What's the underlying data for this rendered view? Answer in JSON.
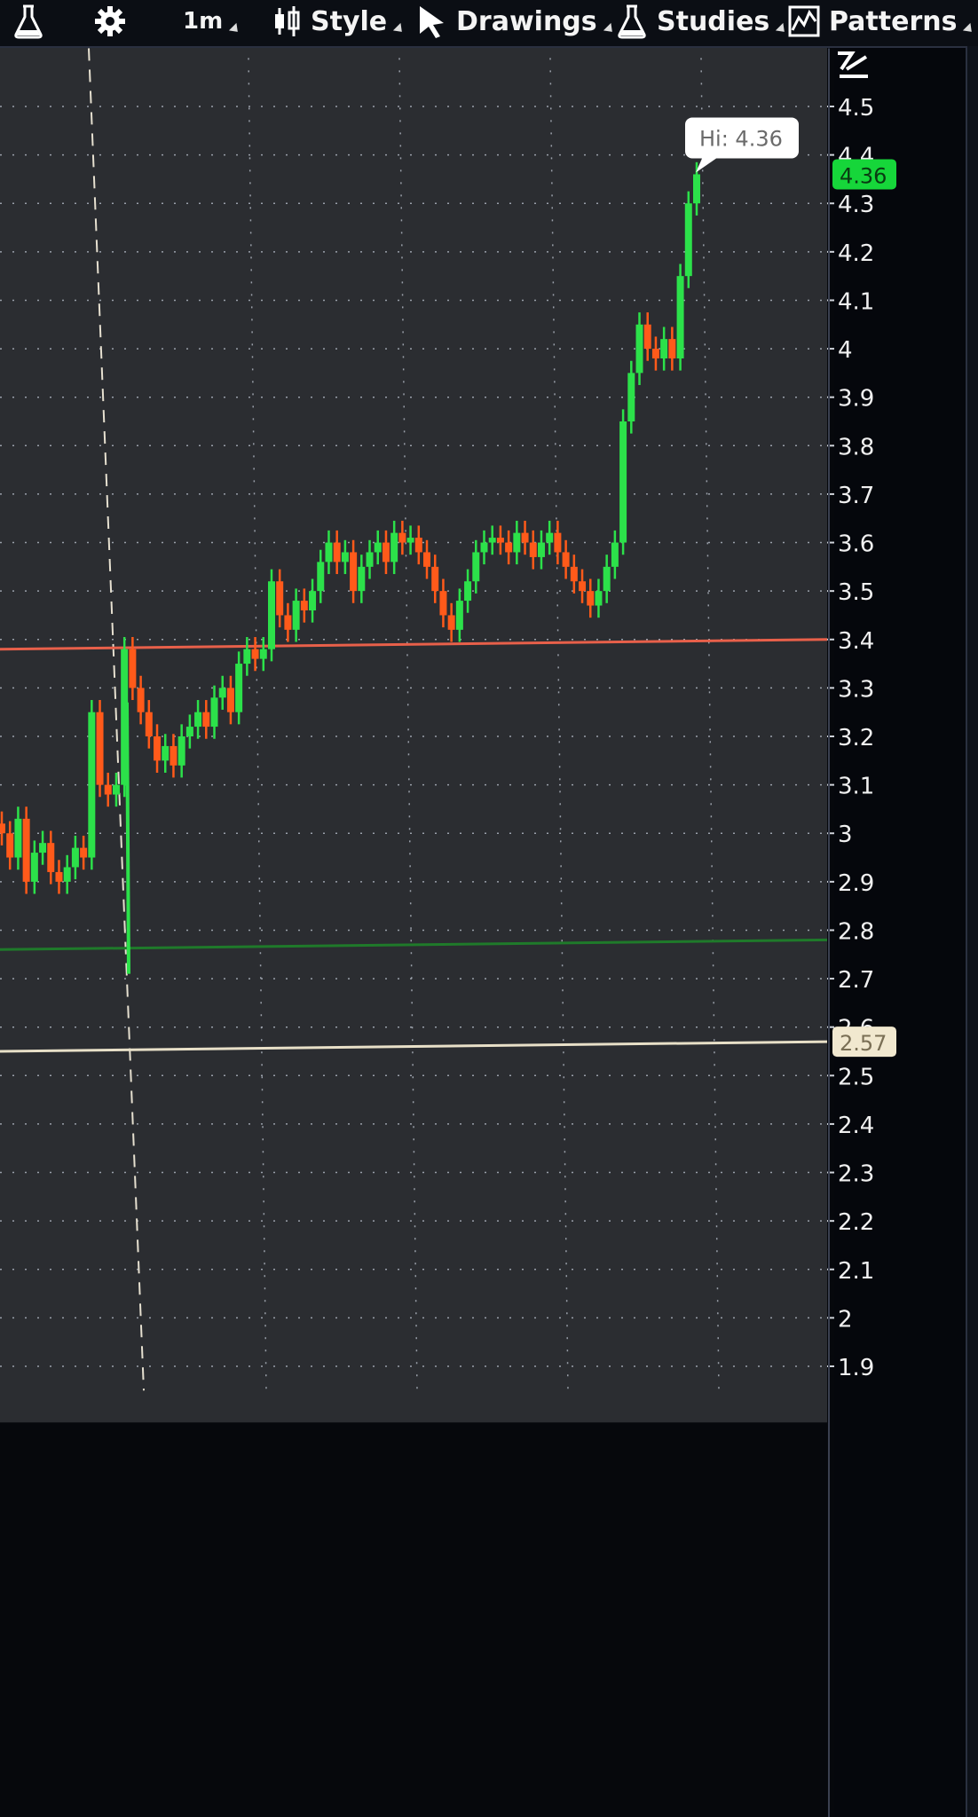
{
  "toolbar": {
    "items": [
      {
        "icon": "flask-icon",
        "label": ""
      },
      {
        "icon": "gear-icon",
        "label": ""
      },
      {
        "icon": "",
        "label": "1m"
      },
      {
        "icon": "candlestick-icon",
        "label": "Style"
      },
      {
        "icon": "cursor-arrow-icon",
        "label": "Drawings"
      },
      {
        "icon": "flask-icon",
        "label": "Studies"
      },
      {
        "icon": "patterns-icon",
        "label": "Patterns"
      }
    ],
    "drawing_tool_icon": "trendline-tool-icon"
  },
  "chart_data": {
    "type": "candlestick",
    "ylim": [
      1.88,
      4.62
    ],
    "ytick_labels": [
      "4.5",
      "4.4",
      "4.3",
      "4.2",
      "4.1",
      "4",
      "3.9",
      "3.8",
      "3.7",
      "3.6",
      "3.5",
      "3.4",
      "3.3",
      "3.2",
      "3.1",
      "3",
      "2.9",
      "2.8",
      "2.7",
      "2.6",
      "2.5",
      "2.4",
      "2.3",
      "2.2",
      "2.1",
      "2",
      "1.9"
    ],
    "high_marker": {
      "label": "Hi: 4.36",
      "value": 4.36
    },
    "price_badges": [
      {
        "label": "4.36",
        "value": 4.36,
        "color": "#16d63a"
      },
      {
        "label": "2.57",
        "value": 2.57,
        "color": "#f1e8cf"
      }
    ],
    "horizontal_lines": [
      {
        "value_left": 3.38,
        "value_right": 3.4,
        "color": "#e8604a"
      },
      {
        "value_left": 2.76,
        "value_right": 2.78,
        "color": "#1f7a2a"
      },
      {
        "value_left": 2.55,
        "value_right": 2.57,
        "color": "#e8e0c8"
      }
    ],
    "grid": true,
    "colors": {
      "up": "#2ce14a",
      "down": "#ff5a1a",
      "flat": "#f2f2e0"
    },
    "closes": [
      3.0,
      2.95,
      3.03,
      2.9,
      2.96,
      2.98,
      2.92,
      2.9,
      2.93,
      2.97,
      2.95,
      3.25,
      3.1,
      3.08,
      3.1,
      3.38,
      3.3,
      3.25,
      3.2,
      3.15,
      3.18,
      3.14,
      3.2,
      3.22,
      3.25,
      3.22,
      3.28,
      3.3,
      3.25,
      3.35,
      3.38,
      3.36,
      3.38,
      3.52,
      3.45,
      3.42,
      3.48,
      3.46,
      3.5,
      3.56,
      3.6,
      3.56,
      3.58,
      3.5,
      3.55,
      3.58,
      3.6,
      3.56,
      3.62,
      3.6,
      3.61,
      3.58,
      3.55,
      3.5,
      3.45,
      3.42,
      3.48,
      3.52,
      3.58,
      3.6,
      3.61,
      3.6,
      3.58,
      3.62,
      3.6,
      3.57,
      3.6,
      3.62,
      3.58,
      3.55,
      3.52,
      3.5,
      3.47,
      3.5,
      3.55,
      3.6,
      3.85,
      3.95,
      4.05,
      4.0,
      3.98,
      4.02,
      3.98,
      4.15,
      4.3,
      4.36
    ]
  }
}
